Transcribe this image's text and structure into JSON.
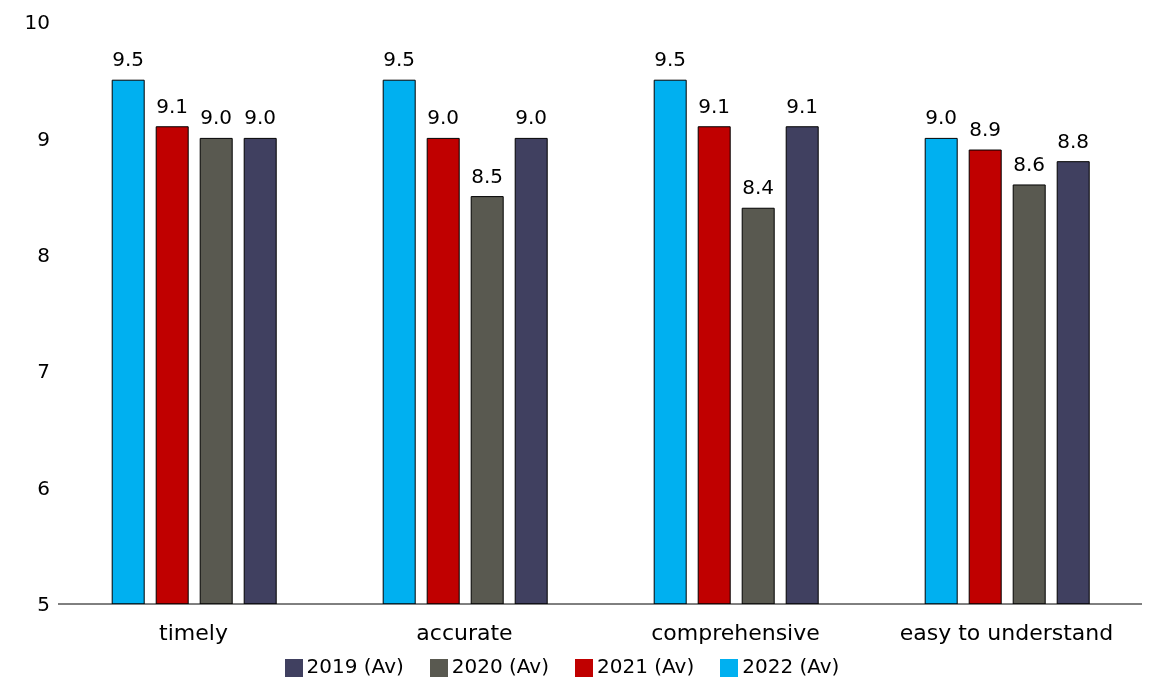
{
  "chart_data": {
    "type": "bar",
    "categories": [
      "timely",
      "accurate",
      "comprehensive",
      "easy to understand"
    ],
    "series": [
      {
        "name": "2022 (Av)",
        "color": "#00b0f0",
        "values": [
          9.5,
          9.5,
          9.5,
          9.0
        ],
        "value_labels": [
          "9.5",
          "9.5",
          "9.5",
          "9.0"
        ]
      },
      {
        "name": "2021 (Av)",
        "color": "#c00000",
        "values": [
          9.1,
          9.0,
          9.1,
          8.9
        ],
        "value_labels": [
          "9.1",
          "9.0",
          "9.1",
          "8.9"
        ]
      },
      {
        "name": "2020 (Av)",
        "color": "#595950",
        "values": [
          9.0,
          8.5,
          8.4,
          8.6
        ],
        "value_labels": [
          "9.0",
          "8.5",
          "8.4",
          "8.6"
        ]
      },
      {
        "name": "2019 (Av)",
        "color": "#404060",
        "values": [
          9.0,
          9.0,
          9.1,
          8.8
        ],
        "value_labels": [
          "9.0",
          "9.0",
          "9.1",
          "8.8"
        ]
      }
    ],
    "ylim": [
      5,
      10
    ],
    "yticks": [
      5,
      6,
      7,
      8,
      9,
      10
    ],
    "grid": false,
    "legend": "bottom"
  }
}
